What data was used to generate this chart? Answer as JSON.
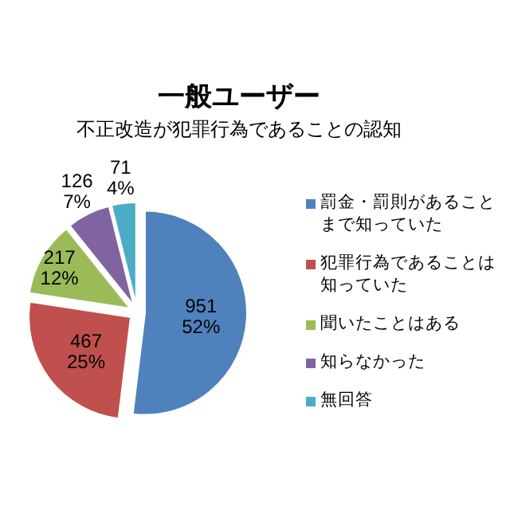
{
  "chart_data": {
    "type": "pie",
    "title": "一般ユーザー",
    "subtitle": "不正改造が犯罪行為であることの認知",
    "categories": [
      "罰金・罰則があることまで知っていた",
      "犯罪行為であることは知っていた",
      "聞いたことはある",
      "知らなかった",
      "無回答"
    ],
    "values": [
      951,
      467,
      217,
      126,
      71
    ],
    "value_labels": [
      "951\n52%",
      "467\n25%",
      "217\n12%",
      "126\n7%",
      "71\n4%"
    ],
    "colors": [
      "#4f81bd",
      "#c0504d",
      "#9bbb59",
      "#8064a2",
      "#4bacc6"
    ],
    "legend": "right"
  }
}
